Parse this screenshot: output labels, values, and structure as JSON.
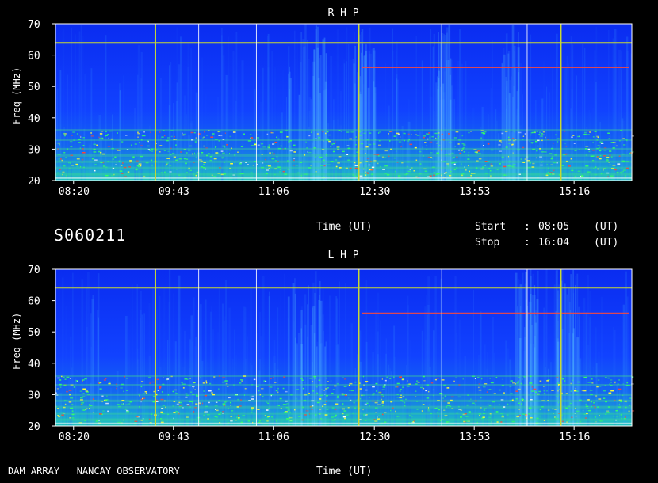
{
  "observation_id": "S060211",
  "footer_label": "DAM ARRAY   NANCAY OBSERVATORY",
  "start_label": "Start",
  "stop_label": "Stop",
  "start_time": "08:05",
  "stop_time": "16:04",
  "ut_label": "(UT)",
  "colon": ":",
  "colors": {
    "background": "#000000",
    "spectrum_base": "#1a4dff",
    "cursor_yellow": "#c8d832",
    "cursor_white": "#ffffff"
  },
  "chart_data": [
    {
      "type": "heatmap",
      "title": "R H P",
      "xlabel": "Time (UT)",
      "ylabel": "Freq (MHz)",
      "x_ticks": [
        "08:20",
        "09:43",
        "11:06",
        "12:30",
        "13:53",
        "15:16"
      ],
      "x_range": [
        "08:05",
        "16:04"
      ],
      "y_ticks": [
        20,
        30,
        40,
        50,
        60,
        70
      ],
      "y_range": [
        20,
        70
      ],
      "colormap": "blue-cyan-green-yellow-red (intensity)",
      "vertical_markers_yellow": [
        "09:28",
        "12:17",
        "15:05"
      ],
      "vertical_markers_white": [
        "10:04",
        "10:52",
        "13:26",
        "14:37"
      ],
      "horizontal_lines_mhz": [
        64
      ]
    },
    {
      "type": "heatmap",
      "title": "L H P",
      "xlabel": "Time (UT)",
      "ylabel": "Freq (MHz)",
      "x_ticks": [
        "08:20",
        "09:43",
        "11:06",
        "12:30",
        "13:53",
        "15:16"
      ],
      "x_range": [
        "08:05",
        "16:04"
      ],
      "y_ticks": [
        20,
        30,
        40,
        50,
        60,
        70
      ],
      "y_range": [
        20,
        70
      ],
      "colormap": "blue-cyan-green-yellow-red (intensity)",
      "vertical_markers_yellow": [
        "09:28",
        "12:17",
        "15:05"
      ],
      "vertical_markers_white": [
        "10:04",
        "10:52",
        "13:26",
        "14:37"
      ],
      "horizontal_lines_mhz": [
        64
      ]
    }
  ]
}
